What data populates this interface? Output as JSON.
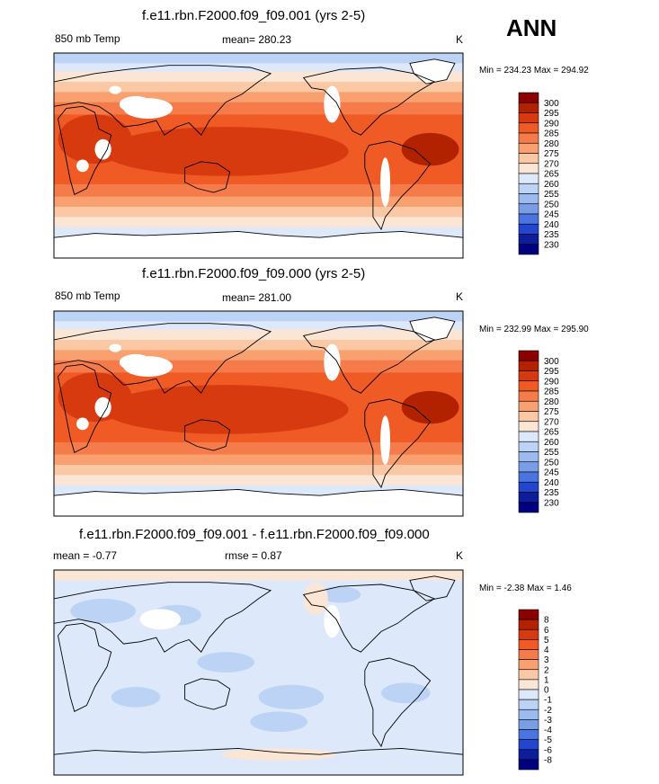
{
  "season": "ANN",
  "chart_data": [
    {
      "type": "heatmap",
      "title": "f.e11.rbn.F2000.f09_f09.001 (yrs 2-5)",
      "variable": "850 mb Temp",
      "units": "K",
      "mean_text": "mean= 280.23",
      "minmax_text": "Min = 234.23 Max = 294.92",
      "min": 234.23,
      "max": 294.92,
      "mean": 280.23,
      "colorbar_levels": [
        "300",
        "295",
        "290",
        "285",
        "280",
        "275",
        "270",
        "265",
        "260",
        "255",
        "250",
        "245",
        "240",
        "235",
        "230"
      ],
      "colorbar_colors": [
        "#8b0000",
        "#b22200",
        "#d83a10",
        "#ef5a25",
        "#f57c4a",
        "#f8a070",
        "#fbc8a5",
        "#fbe6d6",
        "#dde9fb",
        "#bdd3f5",
        "#9bbaf0",
        "#7a9de8",
        "#4a74df",
        "#2246cf",
        "#0d1e9a",
        "#000080"
      ]
    },
    {
      "type": "heatmap",
      "title": "f.e11.rbn.F2000.f09_f09.000 (yrs 2-5)",
      "variable": "850 mb Temp",
      "units": "K",
      "mean_text": "mean= 281.00",
      "minmax_text": "Min = 232.99 Max = 295.90",
      "min": 232.99,
      "max": 295.9,
      "mean": 281.0,
      "colorbar_levels": [
        "300",
        "295",
        "290",
        "285",
        "280",
        "275",
        "270",
        "265",
        "260",
        "255",
        "250",
        "245",
        "240",
        "235",
        "230"
      ],
      "colorbar_colors": [
        "#8b0000",
        "#b22200",
        "#d83a10",
        "#ef5a25",
        "#f57c4a",
        "#f8a070",
        "#fbc8a5",
        "#fbe6d6",
        "#dde9fb",
        "#bdd3f5",
        "#9bbaf0",
        "#7a9de8",
        "#4a74df",
        "#2246cf",
        "#0d1e9a",
        "#000080"
      ]
    },
    {
      "type": "heatmap",
      "title": "f.e11.rbn.F2000.f09_f09.001 - f.e11.rbn.F2000.f09_f09.000",
      "units": "K",
      "mean_text": "mean =  -0.77",
      "rmse_text": "rmse =  0.87",
      "minmax_text": "Min =  -2.38 Max =   1.46",
      "min": -2.38,
      "max": 1.46,
      "mean": -0.77,
      "rmse": 0.87,
      "colorbar_levels": [
        "8",
        "6",
        "5",
        "4",
        "3",
        "2",
        "1",
        "0",
        "-1",
        "-2",
        "-3",
        "-4",
        "-5",
        "-6",
        "-8"
      ],
      "colorbar_colors": [
        "#8b0000",
        "#b22200",
        "#d83a10",
        "#ef5a25",
        "#f57c4a",
        "#f8a070",
        "#fbc8a5",
        "#fbe6d6",
        "#dde9fb",
        "#bdd3f5",
        "#9bbaf0",
        "#7a9de8",
        "#4a74df",
        "#2246cf",
        "#0d1e9a",
        "#000080"
      ]
    }
  ]
}
